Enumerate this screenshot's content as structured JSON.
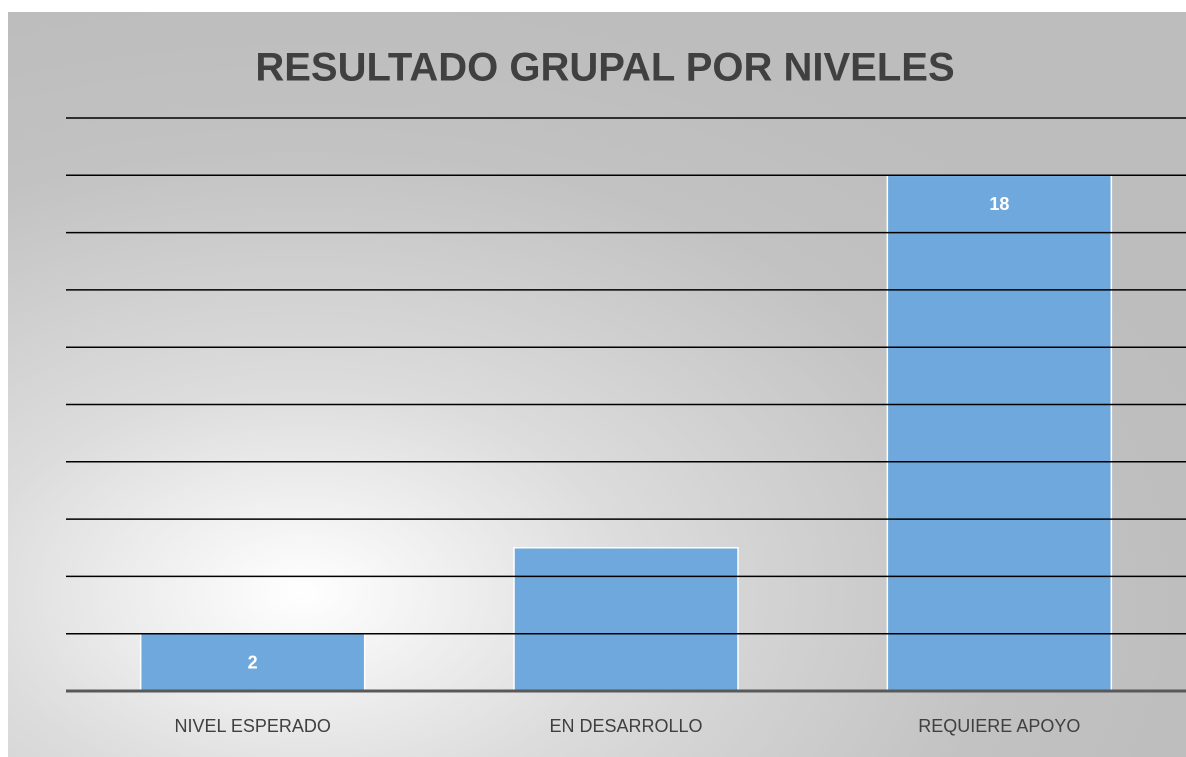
{
  "chart_data": {
    "type": "bar",
    "title": "RESULTADO GRUPAL POR NIVELES",
    "categories": [
      "NIVEL ESPERADO",
      "EN DESARROLLO",
      "REQUIERE APOYO"
    ],
    "values": [
      2,
      5,
      18
    ],
    "value_labels": [
      "2",
      null,
      "18"
    ],
    "color": "#6fa8dc",
    "ylim": [
      0,
      20
    ],
    "yticks": [
      0,
      2,
      4,
      6,
      8,
      10,
      12,
      14,
      16,
      18,
      20
    ],
    "grid": true
  }
}
